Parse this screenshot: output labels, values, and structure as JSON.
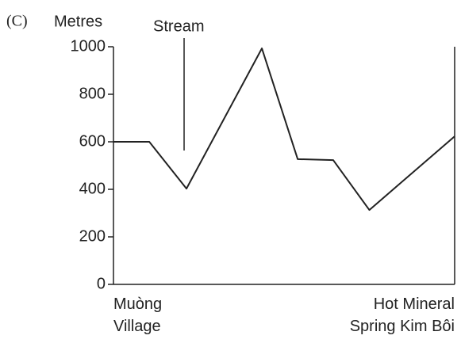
{
  "chart_data": {
    "type": "line",
    "panel_label": "(C)",
    "y_label": "Metres",
    "x": [
      0,
      10.5,
      21.4,
      43.5,
      54,
      64.4,
      75,
      100
    ],
    "xlim": [
      0,
      100
    ],
    "xticks": [
      {
        "value": 0,
        "label": "Muòng\nVillage"
      },
      {
        "value": 100,
        "label": "Hot Mineral\nSpring Kim Bôi"
      }
    ],
    "series": [
      {
        "color": "#222222",
        "values": [
          600,
          600,
          403,
          993,
          527,
          523,
          313,
          623
        ]
      }
    ],
    "ylim": [
      0,
      1000
    ],
    "yticks": [
      0,
      200,
      400,
      600,
      800,
      1000
    ],
    "annotations": [
      {
        "text": "Stream",
        "x": 21.4,
        "y": 930
      }
    ],
    "grid": false
  }
}
